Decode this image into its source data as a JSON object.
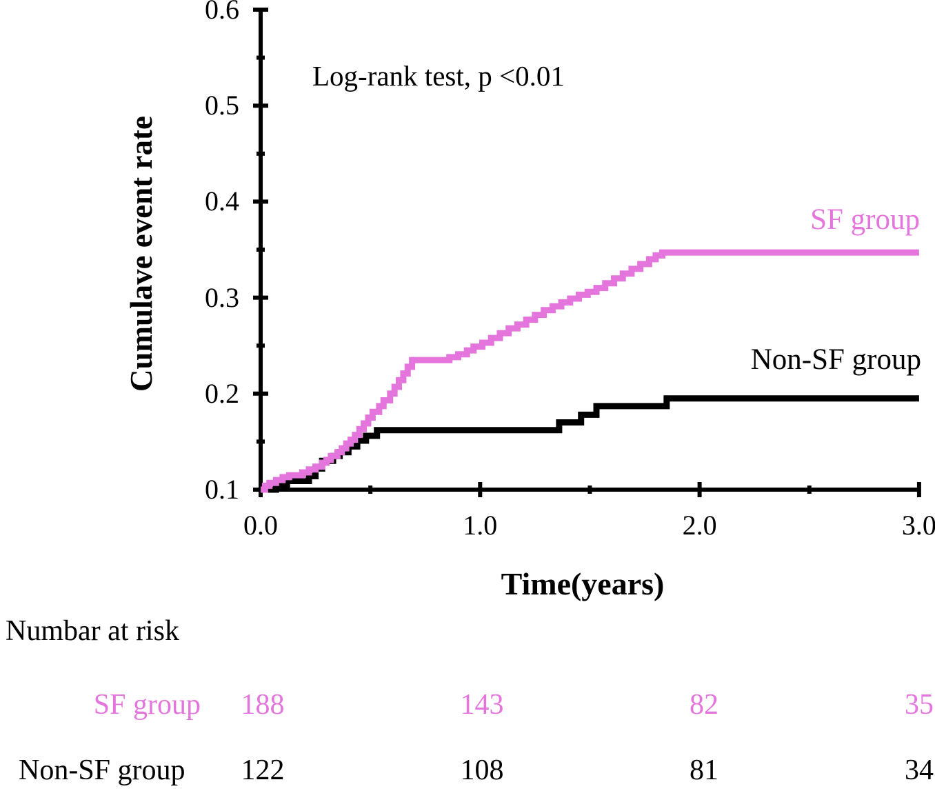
{
  "annotation": "Log-rank test, p <0.01",
  "y_axis": {
    "label": "Cumulave event rate",
    "tick_labels": [
      "0.6",
      "0.5",
      "0.4",
      "0.3",
      "0.2",
      "0.1"
    ],
    "tick_values": [
      0.6,
      0.5,
      0.4,
      0.3,
      0.2,
      0.1
    ]
  },
  "x_axis": {
    "label": "Time(years)",
    "tick_labels": [
      "0.0",
      "1.0",
      "2.0",
      "3.0"
    ],
    "tick_values": [
      0,
      1,
      2,
      3
    ]
  },
  "legend": {
    "sf_label": "SF group",
    "non_sf_label": "Non-SF group"
  },
  "colors": {
    "sf_pink": "#E475DC",
    "non_sf_black": "#000000"
  },
  "risk_table": {
    "header": "Numbar at risk",
    "rows": [
      {
        "label": "SF group",
        "counts": [
          "188",
          "143",
          "82",
          "35"
        ]
      },
      {
        "label": "Non-SF group",
        "counts": [
          "122",
          "108",
          "81",
          "34"
        ]
      }
    ]
  },
  "chart_data": {
    "type": "line",
    "subtype": "step-cumulative-event-km",
    "annotation": "Log-rank test, p <0.01",
    "xlabel": "Time(years)",
    "ylabel": "Cumulave event rate",
    "xlim": [
      0,
      3
    ],
    "ylim": [
      0.1,
      0.6
    ],
    "grid": false,
    "x_major_ticks": [
      0,
      1,
      2,
      3
    ],
    "x_minor_ticks": [
      0.5,
      1.5,
      2.5
    ],
    "y_major_ticks": [
      0.1,
      0.2,
      0.3,
      0.4,
      0.5,
      0.6
    ],
    "y_minor_ticks": [
      0.15,
      0.25,
      0.35,
      0.45,
      0.55
    ],
    "series": [
      {
        "name": "Non-SF group",
        "color": "#000000",
        "steps": [
          [
            0.0,
            0.1
          ],
          [
            0.07,
            0.105
          ],
          [
            0.12,
            0.109
          ],
          [
            0.22,
            0.114
          ],
          [
            0.25,
            0.122
          ],
          [
            0.28,
            0.13
          ],
          [
            0.33,
            0.135
          ],
          [
            0.36,
            0.139
          ],
          [
            0.4,
            0.145
          ],
          [
            0.44,
            0.151
          ],
          [
            0.48,
            0.156
          ],
          [
            0.53,
            0.162
          ],
          [
            1.36,
            0.17
          ],
          [
            1.46,
            0.178
          ],
          [
            1.53,
            0.187
          ],
          [
            1.85,
            0.195
          ],
          [
            3.0,
            0.195
          ]
        ]
      },
      {
        "name": "SF group",
        "color": "#E475DC",
        "steps": [
          [
            0.0,
            0.1
          ],
          [
            0.02,
            0.104
          ],
          [
            0.04,
            0.107
          ],
          [
            0.07,
            0.11
          ],
          [
            0.1,
            0.113
          ],
          [
            0.13,
            0.115
          ],
          [
            0.19,
            0.118
          ],
          [
            0.22,
            0.121
          ],
          [
            0.25,
            0.124
          ],
          [
            0.28,
            0.128
          ],
          [
            0.3,
            0.131
          ],
          [
            0.32,
            0.135
          ],
          [
            0.35,
            0.139
          ],
          [
            0.37,
            0.143
          ],
          [
            0.39,
            0.148
          ],
          [
            0.41,
            0.152
          ],
          [
            0.43,
            0.157
          ],
          [
            0.45,
            0.163
          ],
          [
            0.47,
            0.169
          ],
          [
            0.49,
            0.175
          ],
          [
            0.51,
            0.181
          ],
          [
            0.54,
            0.187
          ],
          [
            0.56,
            0.193
          ],
          [
            0.59,
            0.2
          ],
          [
            0.61,
            0.207
          ],
          [
            0.63,
            0.214
          ],
          [
            0.65,
            0.221
          ],
          [
            0.67,
            0.228
          ],
          [
            0.69,
            0.235
          ],
          [
            0.86,
            0.238
          ],
          [
            0.9,
            0.241
          ],
          [
            0.94,
            0.245
          ],
          [
            0.97,
            0.249
          ],
          [
            1.01,
            0.253
          ],
          [
            1.05,
            0.258
          ],
          [
            1.09,
            0.263
          ],
          [
            1.13,
            0.268
          ],
          [
            1.17,
            0.272
          ],
          [
            1.21,
            0.277
          ],
          [
            1.25,
            0.282
          ],
          [
            1.29,
            0.287
          ],
          [
            1.33,
            0.291
          ],
          [
            1.37,
            0.295
          ],
          [
            1.41,
            0.299
          ],
          [
            1.45,
            0.303
          ],
          [
            1.49,
            0.306
          ],
          [
            1.53,
            0.31
          ],
          [
            1.57,
            0.315
          ],
          [
            1.61,
            0.32
          ],
          [
            1.65,
            0.325
          ],
          [
            1.69,
            0.33
          ],
          [
            1.73,
            0.335
          ],
          [
            1.77,
            0.34
          ],
          [
            1.8,
            0.344
          ],
          [
            1.83,
            0.347
          ],
          [
            3.0,
            0.347
          ]
        ]
      }
    ],
    "number_at_risk": {
      "times": [
        0,
        1,
        2,
        3
      ],
      "SF group": [
        188,
        143,
        82,
        35
      ],
      "Non-SF group": [
        122,
        108,
        81,
        34
      ]
    }
  }
}
